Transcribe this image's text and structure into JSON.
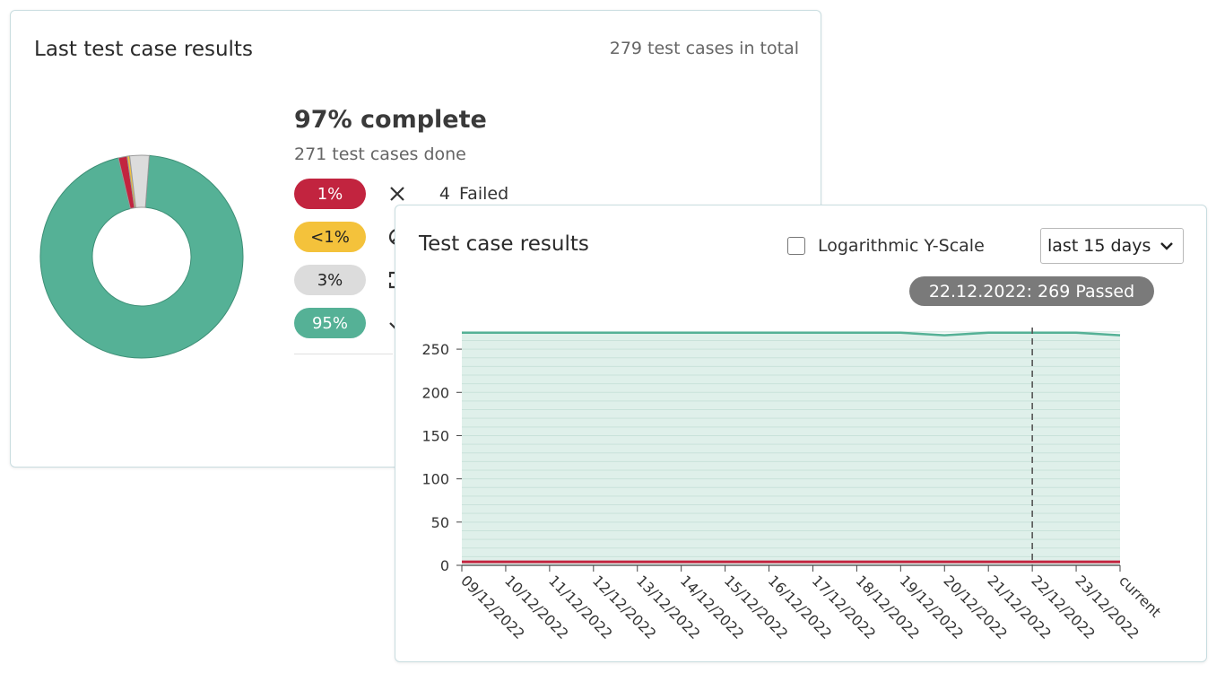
{
  "summary_card": {
    "title": "Last test case results",
    "total_text": "279 test cases in total",
    "complete_text": "97% complete",
    "done_text": "271 test cases done",
    "rows": [
      {
        "key": "failed",
        "percent": "1%",
        "count": "4",
        "label": "Failed",
        "color": "#c2243f",
        "text_color": "#ffffff",
        "icon": "close-x-icon"
      },
      {
        "key": "blocked",
        "percent": "<1%",
        "count": "",
        "label": "",
        "color": "#f4c23b",
        "text_color": "#222222",
        "icon": "blocked-icon"
      },
      {
        "key": "pending",
        "percent": "3%",
        "count": "",
        "label": "",
        "color": "#dcdcdc",
        "text_color": "#222222",
        "icon": "pending-icon"
      },
      {
        "key": "passed",
        "percent": "95%",
        "count": "",
        "label": "",
        "color": "#55b196",
        "text_color": "#ffffff",
        "icon": "check-icon"
      }
    ],
    "donut": [
      {
        "name": "passed",
        "fraction": 0.951,
        "color": "#55b196"
      },
      {
        "name": "failed",
        "fraction": 0.014,
        "color": "#c2243f"
      },
      {
        "name": "blocked",
        "fraction": 0.004,
        "color": "#f4c23b"
      },
      {
        "name": "pending",
        "fraction": 0.031,
        "color": "#dcdcdc"
      }
    ]
  },
  "results_card": {
    "title": "Test case results",
    "log_scale_label": "Logarithmic Y-Scale",
    "log_scale_checked": false,
    "range_value": "last 15 days",
    "tooltip": "22.12.2022: 269 Passed"
  },
  "chart_data": {
    "type": "area",
    "x": [
      "09/12/2022",
      "10/12/2022",
      "11/12/2022",
      "12/12/2022",
      "13/12/2022",
      "14/12/2022",
      "15/12/2022",
      "16/12/2022",
      "17/12/2022",
      "18/12/2022",
      "19/12/2022",
      "20/12/2022",
      "21/12/2022",
      "22/12/2022",
      "23/12/2022",
      "current"
    ],
    "series": [
      {
        "name": "Passed",
        "color": "#55b196",
        "values": [
          269,
          269,
          269,
          269,
          269,
          269,
          269,
          269,
          269,
          269,
          269,
          266,
          269,
          269,
          269,
          266
        ]
      },
      {
        "name": "Failed",
        "color": "#c2243f",
        "values": [
          4,
          4,
          4,
          4,
          4,
          4,
          4,
          4,
          4,
          4,
          4,
          4,
          4,
          4,
          4,
          4
        ]
      }
    ],
    "yticks": [
      0,
      50,
      100,
      150,
      200,
      250
    ],
    "ylim": [
      0,
      275
    ],
    "highlight_index": 13,
    "grid": true
  }
}
